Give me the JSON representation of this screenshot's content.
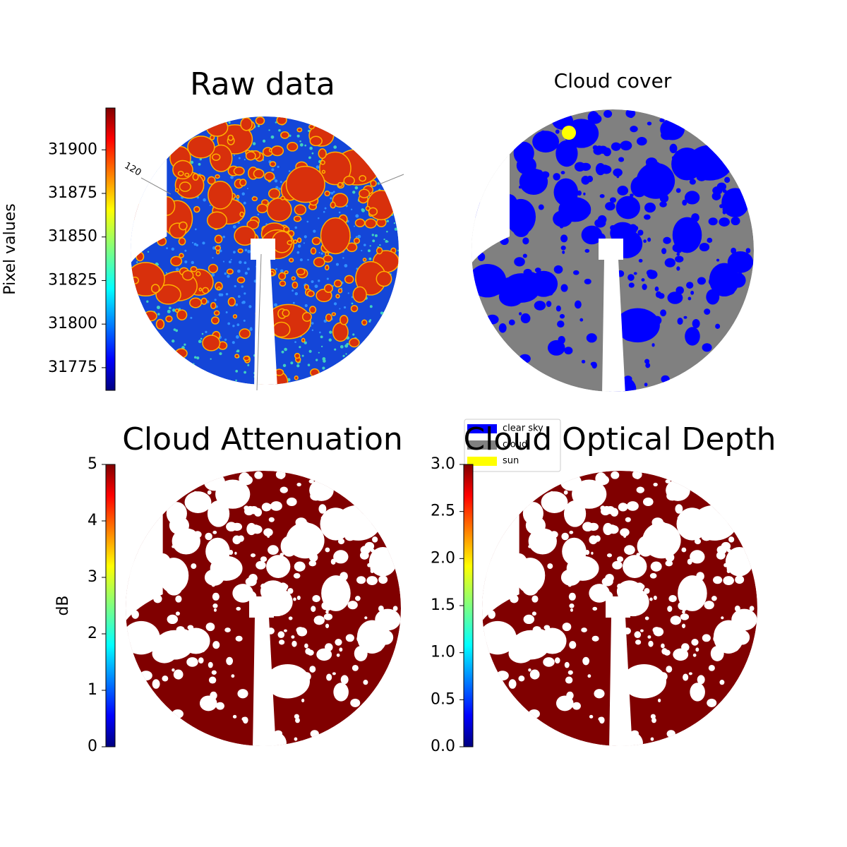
{
  "chart_data": [
    {
      "type": "image",
      "title": "Raw data",
      "annotation": "120",
      "colorbar": {
        "label": "Pixel values",
        "colormap": "jet",
        "lim": [
          31762,
          31924
        ],
        "ticks": [
          31775,
          31800,
          31825,
          31850,
          31875,
          31900
        ]
      }
    },
    {
      "type": "image",
      "title": "Cloud cover",
      "legend": [
        {
          "name": "clear sky",
          "color": "#0000ff"
        },
        {
          "name": "cloud",
          "color": "#808080"
        },
        {
          "name": "sun",
          "color": "#ffff00"
        }
      ]
    },
    {
      "type": "image",
      "title": "Cloud Attenuation",
      "colorbar": {
        "label": "dB",
        "colormap": "jet",
        "lim": [
          0,
          5
        ],
        "ticks": [
          0,
          1,
          2,
          3,
          4,
          5
        ]
      }
    },
    {
      "type": "image",
      "title": "Cloud Optical Depth",
      "colorbar": {
        "colormap": "jet",
        "lim": [
          0,
          3
        ],
        "ticks": [
          {
            "value": 0,
            "label": "0.0"
          },
          {
            "value": 0.5,
            "label": "0.5"
          },
          {
            "value": 1,
            "label": "1.0"
          },
          {
            "value": 1.5,
            "label": "1.5"
          },
          {
            "value": 2,
            "label": "2.0"
          },
          {
            "value": 2.5,
            "label": "2.5"
          },
          {
            "value": 3,
            "label": "3.0"
          }
        ]
      }
    }
  ]
}
